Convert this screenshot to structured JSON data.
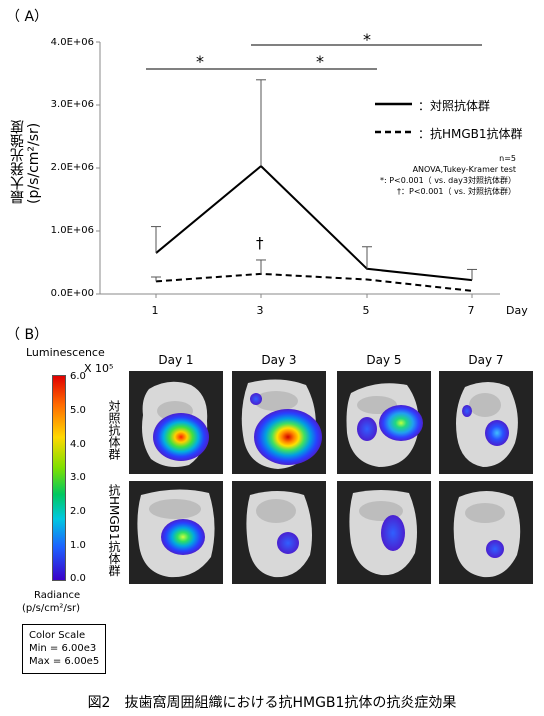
{
  "figure": {
    "panel_a_label": "（ A）",
    "panel_b_label": "（ B）",
    "caption": "図2　抜歯窩周囲組織における抗HMGB1抗体の抗炎症効果"
  },
  "chart_data": {
    "type": "line",
    "ylabel_line1": "最大発光強度",
    "ylabel_line2": "(p/s/cm²/sr)",
    "xlabel": "Day",
    "x": [
      1,
      3,
      5,
      7
    ],
    "yticks": [
      "0.0E+00",
      "1.0E+06",
      "2.0E+06",
      "3.0E+06",
      "4.0E+06"
    ],
    "ylim": [
      0,
      4000000
    ],
    "series": [
      {
        "name": "：対照抗体群",
        "style": "solid",
        "values": [
          650000,
          2030000,
          400000,
          220000
        ],
        "error": [
          420000,
          1370000,
          350000,
          170000
        ]
      },
      {
        "name": "：抗HMGB1抗体群",
        "style": "dashed",
        "values": [
          200000,
          320000,
          230000,
          50000
        ],
        "error": [
          70000,
          220000,
          0,
          0
        ]
      }
    ],
    "significance": [
      {
        "label": "*",
        "from": 1,
        "to": 3
      },
      {
        "label": "*",
        "from": 3,
        "to": 5
      },
      {
        "label": "*",
        "from": 3,
        "to": 7
      }
    ],
    "dagger": {
      "label": "†",
      "x": 3
    },
    "notes": [
      "n=5",
      "ANOVA,Tukey-Kramer test",
      "*: P<0.001（ vs. day3対照抗体群）",
      "†：P<0.001（ vs. 対照抗体群）"
    ]
  },
  "imaging": {
    "colorbar_title": "Luminescence",
    "colorbar_unit": "X 10⁵",
    "colorbar_ticks": [
      "6.0",
      "5.0",
      "4.0",
      "3.0",
      "2.0",
      "1.0",
      "0.0"
    ],
    "radiance_label_line1": "Radiance",
    "radiance_label_line2": "(p/s/cm²/sr)",
    "days": [
      "Day 1",
      "Day 3",
      "Day 5",
      "Day 7"
    ],
    "row_labels": [
      "対照抗体群",
      "抗HMGB1抗体群"
    ],
    "color_scale": {
      "title": "Color Scale",
      "min": "Min = 6.00e3",
      "max": "Max = 6.00e5"
    },
    "colors": {
      "tile_bg": "#232323",
      "tissue": "#d8d8d8"
    }
  }
}
